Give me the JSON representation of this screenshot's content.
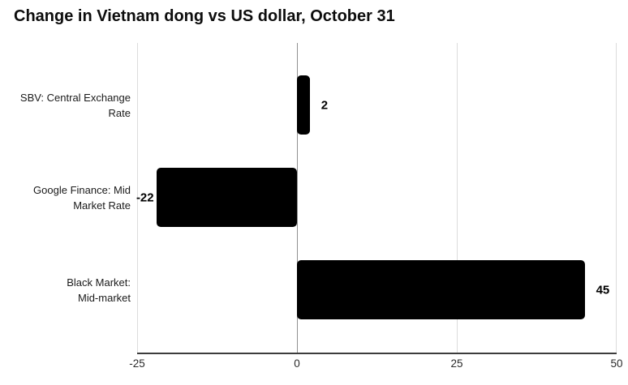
{
  "chart_data": {
    "type": "bar",
    "orientation": "horizontal",
    "title": "Change in Vietnam dong vs US dollar, October 31",
    "categories": [
      "SBV: Central Exchange\nRate",
      "Google Finance: Mid\nMarket Rate",
      "Black Market:\nMid-market"
    ],
    "values": [
      2,
      -22,
      45
    ],
    "value_labels": [
      "2",
      "-22",
      "45"
    ],
    "xlim": [
      -25,
      50
    ],
    "x_ticks": [
      -25,
      0,
      25,
      50
    ],
    "x_tick_labels": [
      "-25",
      "0",
      "25",
      "50"
    ],
    "xlabel": "",
    "ylabel": "",
    "grid": true,
    "legend": false,
    "colors": {
      "bar": "#000000",
      "gridline": "#dcdcdc",
      "zero_line": "#909090",
      "axis_line": "#3c3c3c",
      "text": "#1a1a1a",
      "background": "#ffffff"
    }
  }
}
